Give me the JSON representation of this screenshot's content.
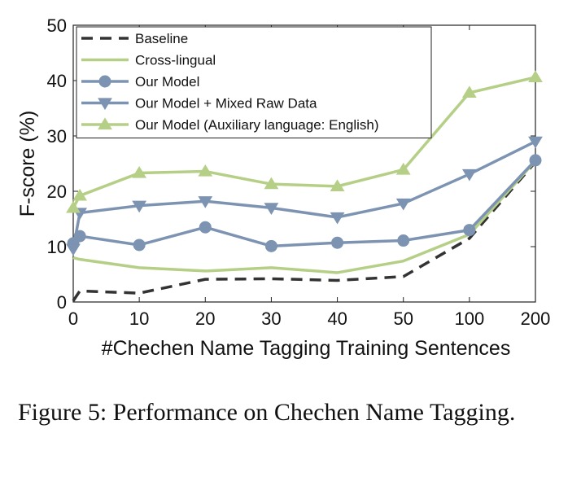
{
  "chart_data": {
    "type": "line",
    "xlabel": "#Chechen Name Tagging Training Sentences",
    "ylabel": "F-score (%)",
    "ylim": [
      0,
      50
    ],
    "yticks": [
      "0",
      "10",
      "20",
      "30",
      "40",
      "50"
    ],
    "categories": [
      "0",
      "10",
      "20",
      "30",
      "40",
      "50",
      "100",
      "200"
    ],
    "legend_position": "top-left",
    "grid": false,
    "series": [
      {
        "name": "Baseline",
        "style": "dashed",
        "marker": "none",
        "color": "#333333",
        "points": [
          [
            0,
            0.2
          ],
          [
            1,
            2.0
          ],
          [
            10,
            1.6
          ],
          [
            20,
            4.1
          ],
          [
            30,
            4.2
          ],
          [
            40,
            3.9
          ],
          [
            50,
            4.6
          ],
          [
            100,
            11.5
          ],
          [
            200,
            25.3
          ]
        ]
      },
      {
        "name": "Cross-lingual",
        "style": "solid",
        "marker": "none",
        "color": "#b5cf86",
        "points": [
          [
            0,
            8.0
          ],
          [
            1,
            7.7
          ],
          [
            10,
            6.2
          ],
          [
            20,
            5.6
          ],
          [
            30,
            6.2
          ],
          [
            40,
            5.3
          ],
          [
            50,
            7.4
          ],
          [
            100,
            12.2
          ],
          [
            200,
            25.5
          ]
        ]
      },
      {
        "name": "Our Model",
        "style": "solid",
        "marker": "circle",
        "color": "#7d93b2",
        "points": [
          [
            0,
            10.6
          ],
          [
            1,
            11.9
          ],
          [
            10,
            10.3
          ],
          [
            20,
            13.5
          ],
          [
            30,
            10.1
          ],
          [
            40,
            10.7
          ],
          [
            50,
            11.1
          ],
          [
            100,
            13.0
          ],
          [
            200,
            25.6
          ]
        ]
      },
      {
        "name": "Our Model + Mixed Raw Data",
        "style": "solid",
        "marker": "triangle-down",
        "color": "#7d93b2",
        "points": [
          [
            0,
            9.6
          ],
          [
            1,
            16.1
          ],
          [
            10,
            17.4
          ],
          [
            20,
            18.2
          ],
          [
            30,
            17.0
          ],
          [
            40,
            15.3
          ],
          [
            50,
            17.8
          ],
          [
            100,
            23.1
          ],
          [
            200,
            29.0
          ]
        ]
      },
      {
        "name": "Our Model (Auxiliary language: English)",
        "style": "solid",
        "marker": "triangle-up",
        "color": "#b5cf86",
        "points": [
          [
            0,
            17.0
          ],
          [
            1,
            19.2
          ],
          [
            10,
            23.3
          ],
          [
            20,
            23.6
          ],
          [
            30,
            21.3
          ],
          [
            40,
            20.9
          ],
          [
            50,
            23.9
          ],
          [
            100,
            37.8
          ],
          [
            200,
            40.6
          ]
        ]
      }
    ]
  },
  "caption": "Figure 5:  Performance on Chechen Name Tagging."
}
